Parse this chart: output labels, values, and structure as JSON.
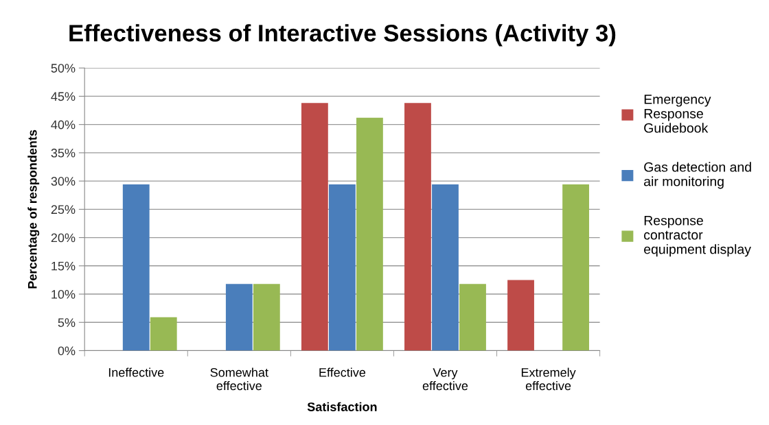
{
  "chart_data": {
    "type": "bar",
    "title": "Effectiveness of Interactive Sessions (Activity 3)",
    "xlabel": "Satisfaction",
    "ylabel": "Percentage of respondents",
    "categories": [
      "Ineffective",
      "Somewhat\neffective",
      "Effective",
      "Very\neffective",
      "Extremely\neffective"
    ],
    "series": [
      {
        "name": "Emergency\nResponse\nGuidebook",
        "color": "#be4b48",
        "values": [
          0,
          0,
          43.8,
          43.8,
          12.5
        ]
      },
      {
        "name": "Gas detection and\nair monitoring",
        "color": "#4a7ebb",
        "values": [
          29.4,
          11.8,
          29.4,
          29.4,
          0
        ]
      },
      {
        "name": "Response\ncontractor\nequipment display",
        "color": "#98b954",
        "values": [
          5.9,
          11.8,
          41.2,
          11.8,
          29.4
        ]
      }
    ],
    "ylim": [
      0,
      50
    ],
    "yticks": [
      {
        "value": 0,
        "label": "0%"
      },
      {
        "value": 5,
        "label": "5%"
      },
      {
        "value": 10,
        "label": "10%"
      },
      {
        "value": 15,
        "label": "15%"
      },
      {
        "value": 20,
        "label": "20%"
      },
      {
        "value": 25,
        "label": "25%"
      },
      {
        "value": 30,
        "label": "30%"
      },
      {
        "value": 35,
        "label": "35%"
      },
      {
        "value": 40,
        "label": "40%"
      },
      {
        "value": 45,
        "label": "45%"
      },
      {
        "value": 50,
        "label": "50%"
      }
    ],
    "grid": "y",
    "legend": "right"
  }
}
